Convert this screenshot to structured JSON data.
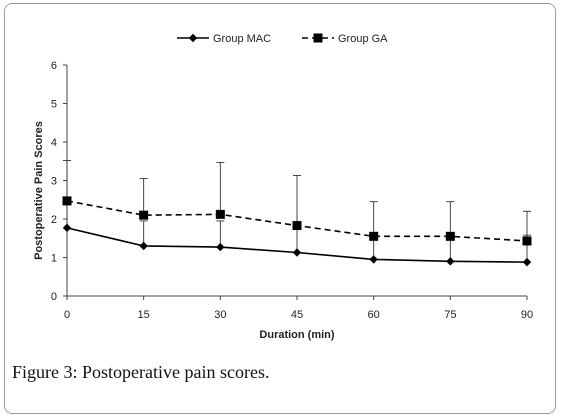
{
  "caption": {
    "label": "Figure 3",
    "text": ": Postoperative pain scores."
  },
  "chart_data": {
    "type": "line",
    "x": [
      0,
      15,
      30,
      45,
      60,
      75,
      90
    ],
    "xlabel": "Duration (min)",
    "ylabel": "Postoperative Pain Scores",
    "xlim": [
      0,
      90
    ],
    "ylim": [
      0,
      6
    ],
    "xticks": [
      "0",
      "15",
      "30",
      "45",
      "60",
      "75",
      "90"
    ],
    "yticks": [
      "0",
      "1",
      "2",
      "3",
      "4",
      "5",
      "6"
    ],
    "legend_position": "top-center",
    "grid": false,
    "series": [
      {
        "name": "Group MAC",
        "marker": "diamond",
        "line": "solid",
        "values": [
          1.77,
          1.3,
          1.27,
          1.13,
          0.95,
          0.9,
          0.88
        ],
        "error_up": [
          1.75,
          0.65,
          0.68,
          0.68,
          0.65,
          0.72,
          0.7
        ]
      },
      {
        "name": "Group GA",
        "marker": "square",
        "line": "dashed",
        "values": [
          2.47,
          2.1,
          2.12,
          1.83,
          1.55,
          1.55,
          1.43
        ],
        "error_up": [
          0.0,
          0.95,
          1.35,
          1.3,
          0.9,
          0.9,
          0.77
        ]
      }
    ],
    "color": "#000000"
  }
}
